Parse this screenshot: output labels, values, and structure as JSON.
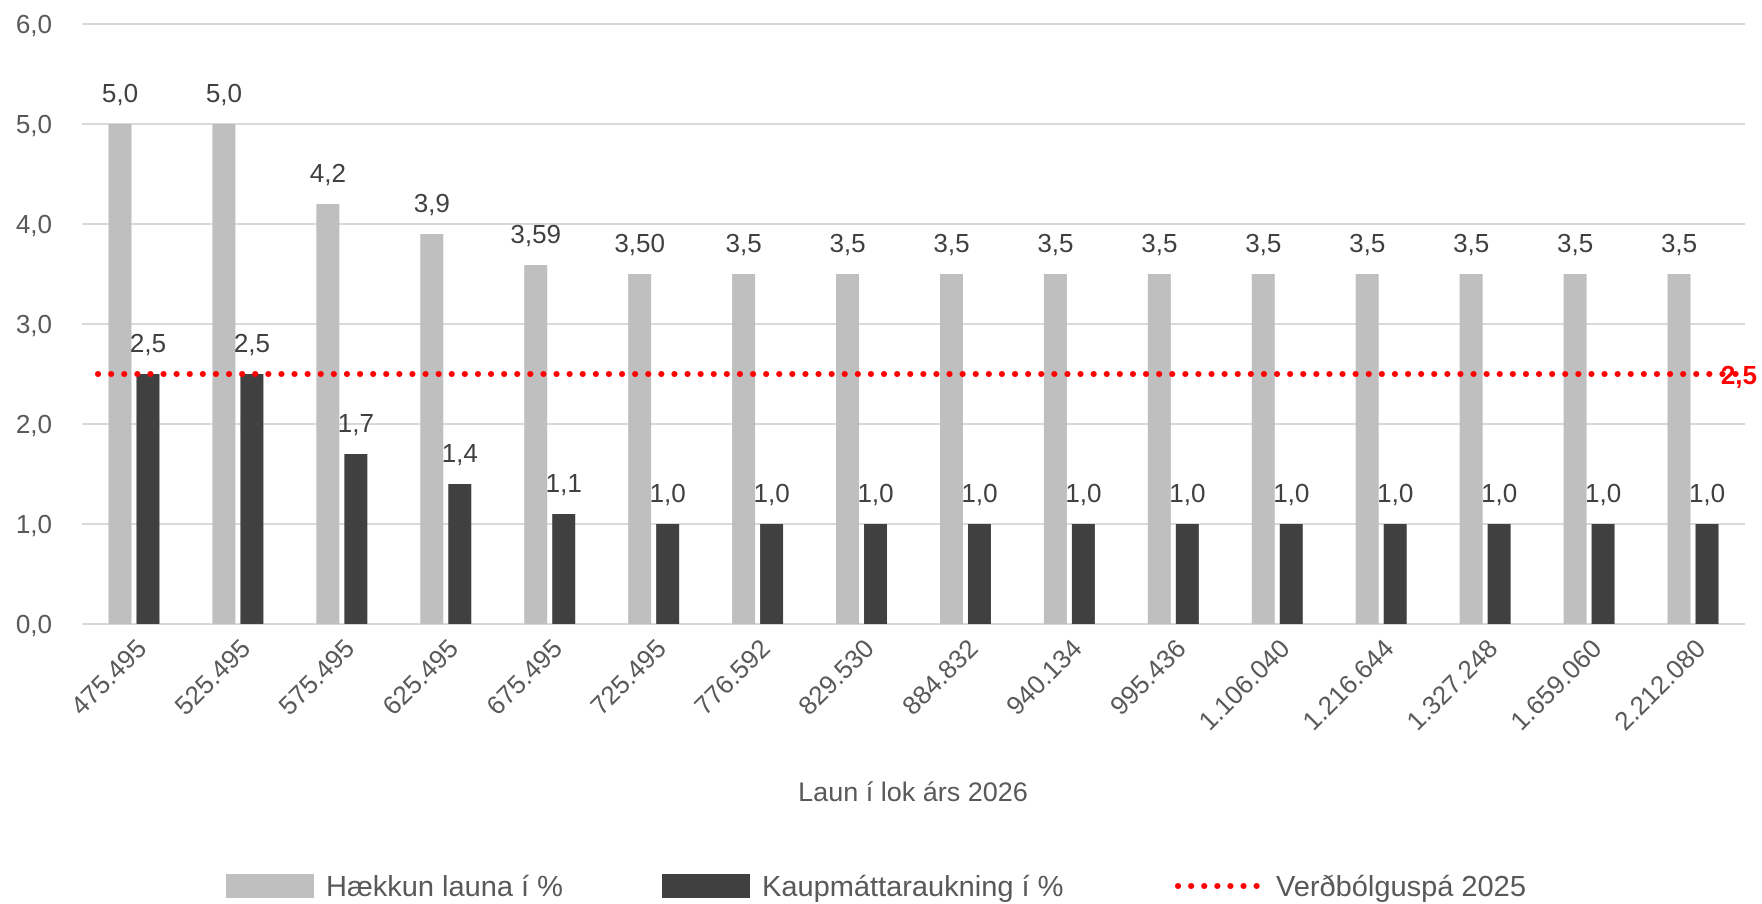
{
  "chart_data": {
    "type": "bar",
    "xlabel": "Laun í lok árs 2026",
    "ylabel": "",
    "ylim": [
      0,
      6
    ],
    "yticks": [
      "0,0",
      "1,0",
      "2,0",
      "3,0",
      "4,0",
      "5,0",
      "6,0"
    ],
    "grid": true,
    "legend_position": "bottom",
    "categories": [
      "475.495",
      "525.495",
      "575.495",
      "625.495",
      "675.495",
      "725.495",
      "776.592",
      "829.530",
      "884.832",
      "940.134",
      "995.436",
      "1.106.040",
      "1.216.644",
      "1.327.248",
      "1.659.060",
      "2.212.080"
    ],
    "series": [
      {
        "name": "Hækkun launa í %",
        "color": "#bfbfbf",
        "values": [
          5.0,
          5.0,
          4.2,
          3.9,
          3.59,
          3.5,
          3.5,
          3.5,
          3.5,
          3.5,
          3.5,
          3.5,
          3.5,
          3.5,
          3.5,
          3.5
        ],
        "labels": [
          "5,0",
          "5,0",
          "4,2",
          "3,9",
          "3,59",
          "3,50",
          "3,5",
          "3,5",
          "3,5",
          "3,5",
          "3,5",
          "3,5",
          "3,5",
          "3,5",
          "3,5",
          "3,5"
        ]
      },
      {
        "name": "Kaupmáttaraukning í %",
        "color": "#404040",
        "values": [
          2.5,
          2.5,
          1.7,
          1.4,
          1.1,
          1.0,
          1.0,
          1.0,
          1.0,
          1.0,
          1.0,
          1.0,
          1.0,
          1.0,
          1.0,
          1.0
        ],
        "labels": [
          "2,5",
          "2,5",
          "1,7",
          "1,4",
          "1,1",
          "1,0",
          "1,0",
          "1,0",
          "1,0",
          "1,0",
          "1,0",
          "1,0",
          "1,0",
          "1,0",
          "1,0",
          "1,0"
        ]
      }
    ],
    "reference_line": {
      "name": "Verðbólguspá 2025",
      "value": 2.5,
      "label": "2,5",
      "color": "#ff0000",
      "style": "dotted"
    }
  }
}
